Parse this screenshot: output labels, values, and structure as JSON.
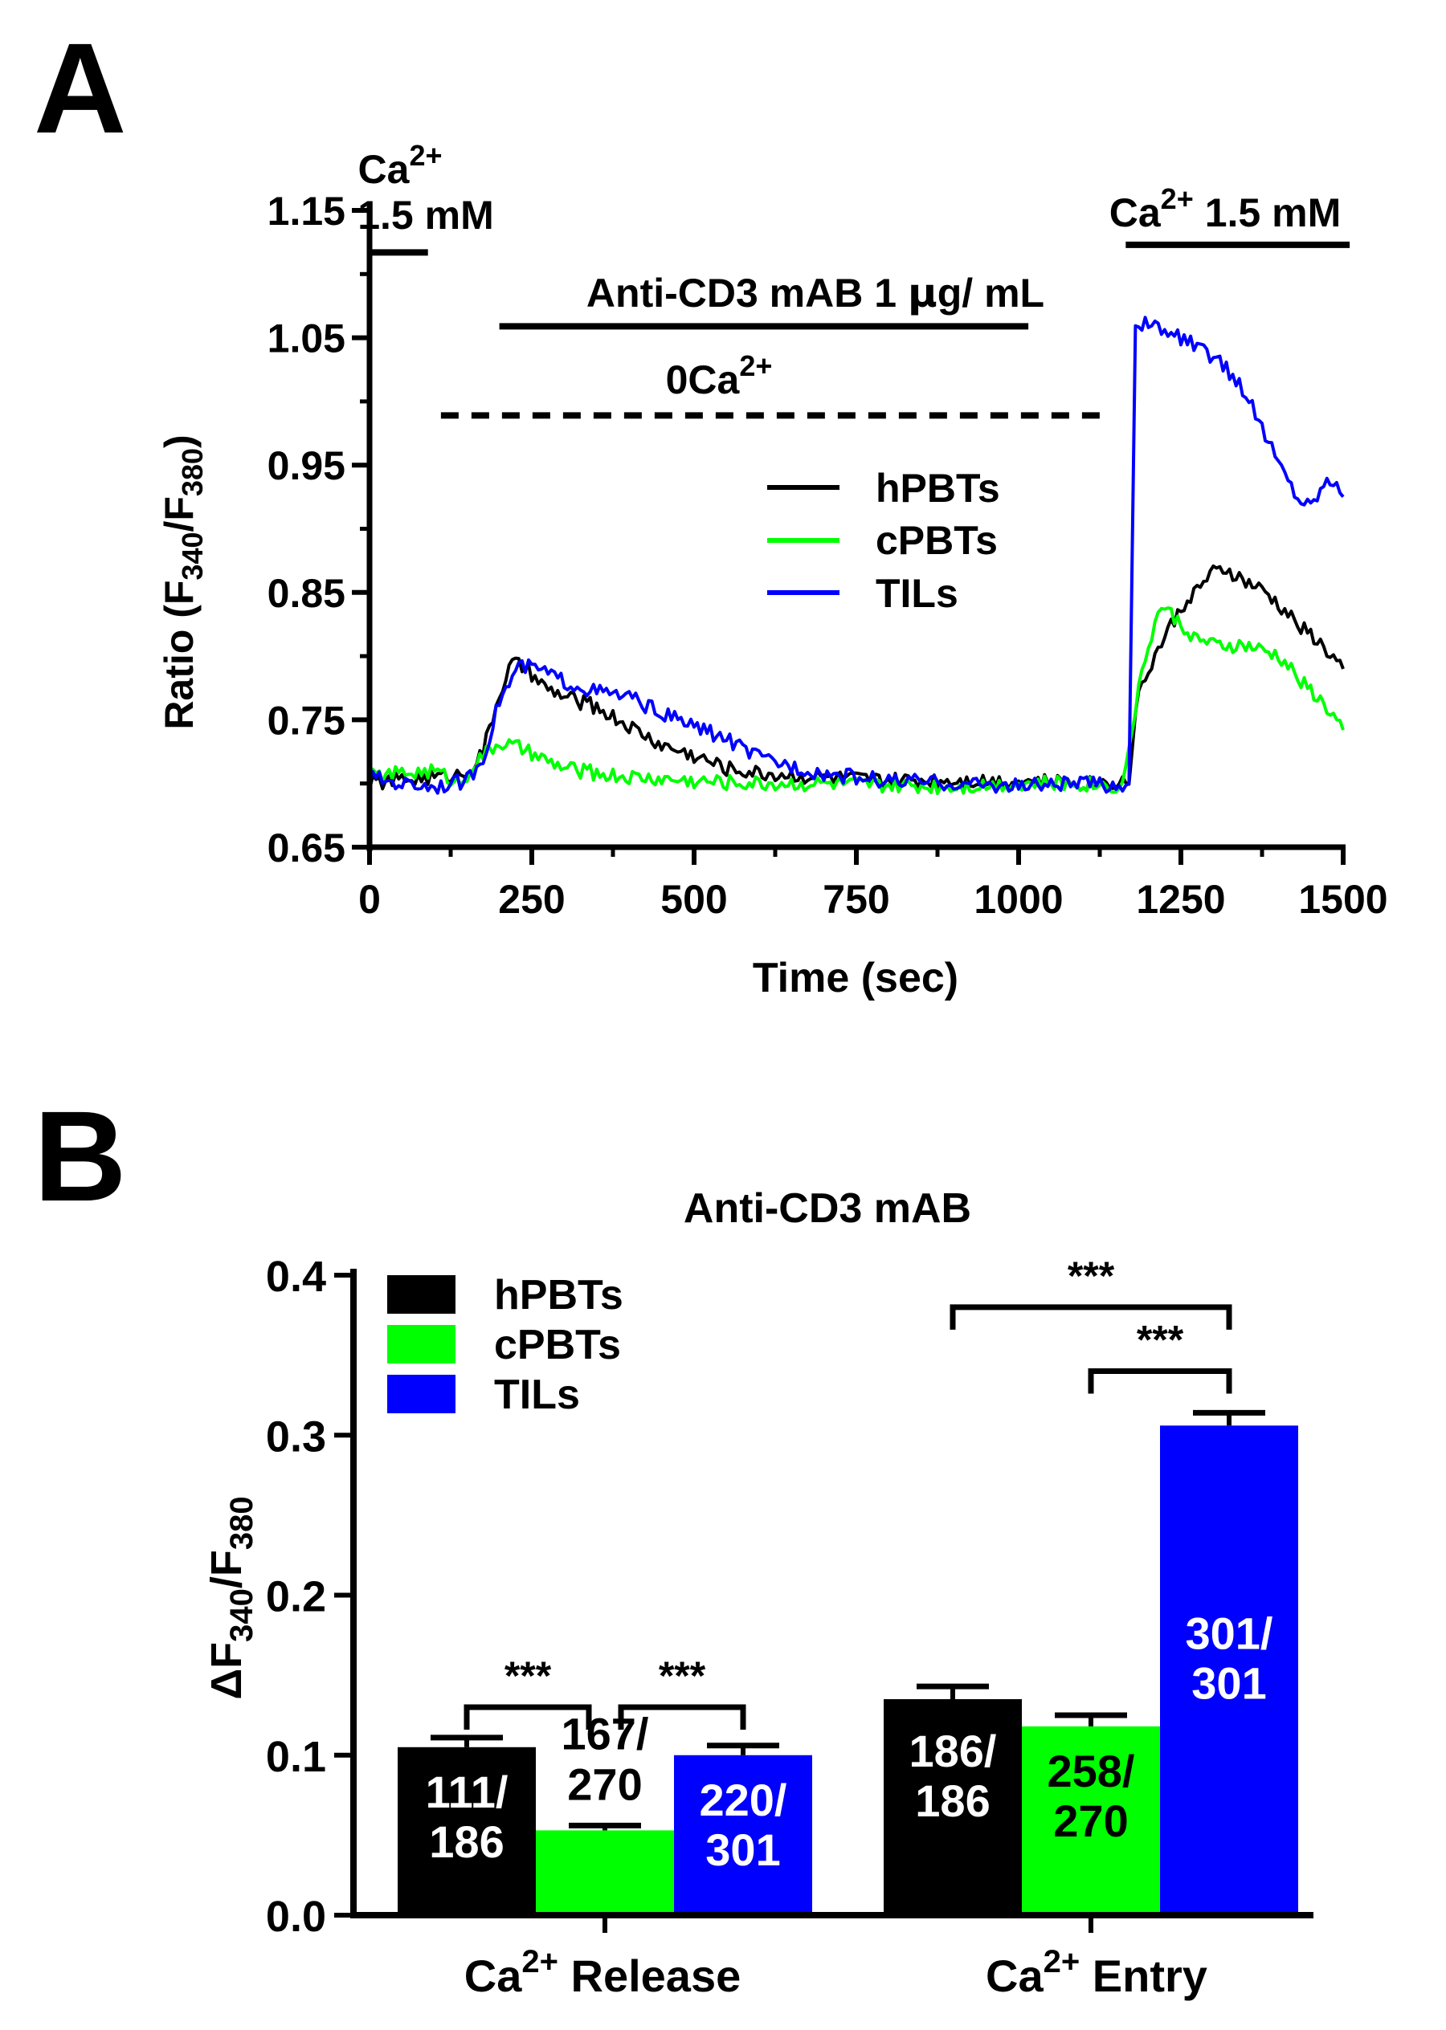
{
  "panels": {
    "a": {
      "letter": "A"
    },
    "b": {
      "letter": "B"
    }
  },
  "colors": {
    "hPBTs": "#000000",
    "cPBTs": "#00ff00",
    "TILs": "#0000ff"
  },
  "chart_data": [
    {
      "type": "line",
      "panel": "A",
      "xlabel": "Time (sec)",
      "ylabel": {
        "prefix": "Ratio (F",
        "sub1": "340",
        "mid": "/F",
        "sub2": "380",
        "suffix": ")"
      },
      "xlim": [
        0,
        1500
      ],
      "ylim": [
        0.65,
        1.15
      ],
      "xticks": [
        0,
        250,
        500,
        750,
        1000,
        1250,
        1500
      ],
      "xtick_labels": [
        "0",
        "250",
        "500",
        "750",
        "1000",
        "1250",
        "1500"
      ],
      "yticks": [
        0.65,
        0.75,
        0.85,
        0.95,
        1.05,
        1.15
      ],
      "ytick_labels": [
        "0.65",
        "0.75",
        "0.85",
        "0.95",
        "1.05",
        "1.15"
      ],
      "annotations": {
        "ca_start_base": "Ca",
        "ca_start_sup": "2+",
        "ca_start_conc": "1.5 mM",
        "ca_end_base": "Ca",
        "ca_end_sup": "2+",
        "ca_end_conc": "1.5 mM",
        "anti_prefix": "Anti-CD3 mAB 1 ",
        "anti_mu": "μ",
        "anti_suffix": "g/ mL",
        "zero_ca_base": "0Ca",
        "zero_ca_sup": "2+"
      },
      "bars": {
        "ca_start": [
          0,
          90
        ],
        "anti_cd3": [
          200,
          1015
        ],
        "zero_ca": [
          110,
          1130
        ],
        "ca_end": [
          1165,
          1510
        ]
      },
      "ca_start_y": 1.117,
      "bar_y": 1.059,
      "zero_ca_y": 0.989,
      "ca_end_y": 1.123,
      "legend": [
        "hPBTs",
        "cPBTs",
        "TILs"
      ],
      "series": [
        {
          "name": "hPBTs",
          "points": [
            [
              0,
              0.7
            ],
            [
              50,
              0.703
            ],
            [
              100,
              0.705
            ],
            [
              150,
              0.708
            ],
            [
              175,
              0.725
            ],
            [
              200,
              0.77
            ],
            [
              220,
              0.795
            ],
            [
              240,
              0.79
            ],
            [
              270,
              0.775
            ],
            [
              300,
              0.768
            ],
            [
              350,
              0.76
            ],
            [
              400,
              0.745
            ],
            [
              450,
              0.73
            ],
            [
              500,
              0.722
            ],
            [
              550,
              0.712
            ],
            [
              600,
              0.708
            ],
            [
              700,
              0.705
            ],
            [
              800,
              0.702
            ],
            [
              900,
              0.703
            ],
            [
              1000,
              0.702
            ],
            [
              1100,
              0.7
            ],
            [
              1160,
              0.702
            ],
            [
              1170,
              0.7
            ],
            [
              1180,
              0.76
            ],
            [
              1200,
              0.79
            ],
            [
              1230,
              0.82
            ],
            [
              1260,
              0.845
            ],
            [
              1300,
              0.865
            ],
            [
              1320,
              0.868
            ],
            [
              1350,
              0.858
            ],
            [
              1380,
              0.85
            ],
            [
              1420,
              0.83
            ],
            [
              1460,
              0.812
            ],
            [
              1490,
              0.795
            ],
            [
              1500,
              0.79
            ]
          ]
        },
        {
          "name": "cPBTs",
          "points": [
            [
              0,
              0.705
            ],
            [
              50,
              0.708
            ],
            [
              100,
              0.71
            ],
            [
              140,
              0.7
            ],
            [
              160,
              0.715
            ],
            [
              200,
              0.732
            ],
            [
              230,
              0.728
            ],
            [
              270,
              0.718
            ],
            [
              300,
              0.712
            ],
            [
              350,
              0.708
            ],
            [
              400,
              0.705
            ],
            [
              500,
              0.702
            ],
            [
              600,
              0.7
            ],
            [
              700,
              0.7
            ],
            [
              800,
              0.698
            ],
            [
              900,
              0.698
            ],
            [
              1000,
              0.7
            ],
            [
              1100,
              0.7
            ],
            [
              1160,
              0.698
            ],
            [
              1180,
              0.76
            ],
            [
              1200,
              0.81
            ],
            [
              1220,
              0.84
            ],
            [
              1240,
              0.83
            ],
            [
              1270,
              0.815
            ],
            [
              1300,
              0.808
            ],
            [
              1350,
              0.808
            ],
            [
              1400,
              0.8
            ],
            [
              1440,
              0.778
            ],
            [
              1470,
              0.762
            ],
            [
              1500,
              0.742
            ]
          ]
        },
        {
          "name": "TILs",
          "points": [
            [
              0,
              0.705
            ],
            [
              50,
              0.7
            ],
            [
              100,
              0.698
            ],
            [
              150,
              0.702
            ],
            [
              175,
              0.72
            ],
            [
              200,
              0.765
            ],
            [
              230,
              0.792
            ],
            [
              260,
              0.79
            ],
            [
              300,
              0.78
            ],
            [
              350,
              0.772
            ],
            [
              400,
              0.768
            ],
            [
              450,
              0.755
            ],
            [
              500,
              0.745
            ],
            [
              550,
              0.735
            ],
            [
              600,
              0.72
            ],
            [
              700,
              0.708
            ],
            [
              800,
              0.702
            ],
            [
              900,
              0.7
            ],
            [
              1000,
              0.698
            ],
            [
              1100,
              0.7
            ],
            [
              1160,
              0.698
            ],
            [
              1170,
              0.7
            ],
            [
              1180,
              1.062
            ],
            [
              1200,
              1.06
            ],
            [
              1250,
              1.05
            ],
            [
              1300,
              1.035
            ],
            [
              1340,
              1.015
            ],
            [
              1370,
              0.985
            ],
            [
              1400,
              0.952
            ],
            [
              1430,
              0.925
            ],
            [
              1450,
              0.918
            ],
            [
              1470,
              0.935
            ],
            [
              1490,
              0.94
            ],
            [
              1500,
              0.925
            ]
          ]
        }
      ]
    },
    {
      "type": "bar",
      "panel": "B",
      "title": "Anti-CD3 mAB",
      "ylabel": {
        "prefix": "ΔF",
        "sub1": "340",
        "mid": "/F",
        "sub2": "380"
      },
      "ylim": [
        0,
        0.4
      ],
      "yticks": [
        0.0,
        0.1,
        0.2,
        0.3,
        0.4
      ],
      "ytick_labels": [
        "0.0",
        "0.1",
        "0.2",
        "0.3",
        "0.4"
      ],
      "categories": [
        {
          "base": "Ca",
          "sup": "2+",
          "rest": " Release"
        },
        {
          "base": "Ca",
          "sup": "2+",
          "rest": " Entry"
        }
      ],
      "legend": [
        "hPBTs",
        "cPBTs",
        "TILs"
      ],
      "series": [
        {
          "name": "hPBTs",
          "values": [
            0.105,
            0.135
          ],
          "errors": [
            0.006,
            0.008
          ],
          "labels": [
            [
              "111/",
              "186"
            ],
            [
              "186/",
              "186"
            ]
          ]
        },
        {
          "name": "cPBTs",
          "values": [
            0.053,
            0.118
          ],
          "errors": [
            0.003,
            0.007
          ],
          "labels": [
            [
              "167/",
              "270"
            ],
            [
              "258/",
              "270"
            ]
          ]
        },
        {
          "name": "TILs",
          "values": [
            0.1,
            0.306
          ],
          "errors": [
            0.006,
            0.008
          ],
          "labels": [
            [
              "220/",
              "301"
            ],
            [
              "301/",
              "301"
            ]
          ]
        }
      ],
      "significance": [
        {
          "category": 0,
          "from": "hPBTs",
          "to": "cPBTs",
          "label": "***",
          "y": 0.13
        },
        {
          "category": 0,
          "from": "cPBTs",
          "to": "TILs",
          "label": "***",
          "y": 0.13
        },
        {
          "category": 1,
          "from": "hPBTs",
          "to": "TILs",
          "label": "***",
          "y": 0.38
        },
        {
          "category": 1,
          "from": "cPBTs",
          "to": "TILs",
          "label": "***",
          "y": 0.34
        }
      ]
    }
  ]
}
